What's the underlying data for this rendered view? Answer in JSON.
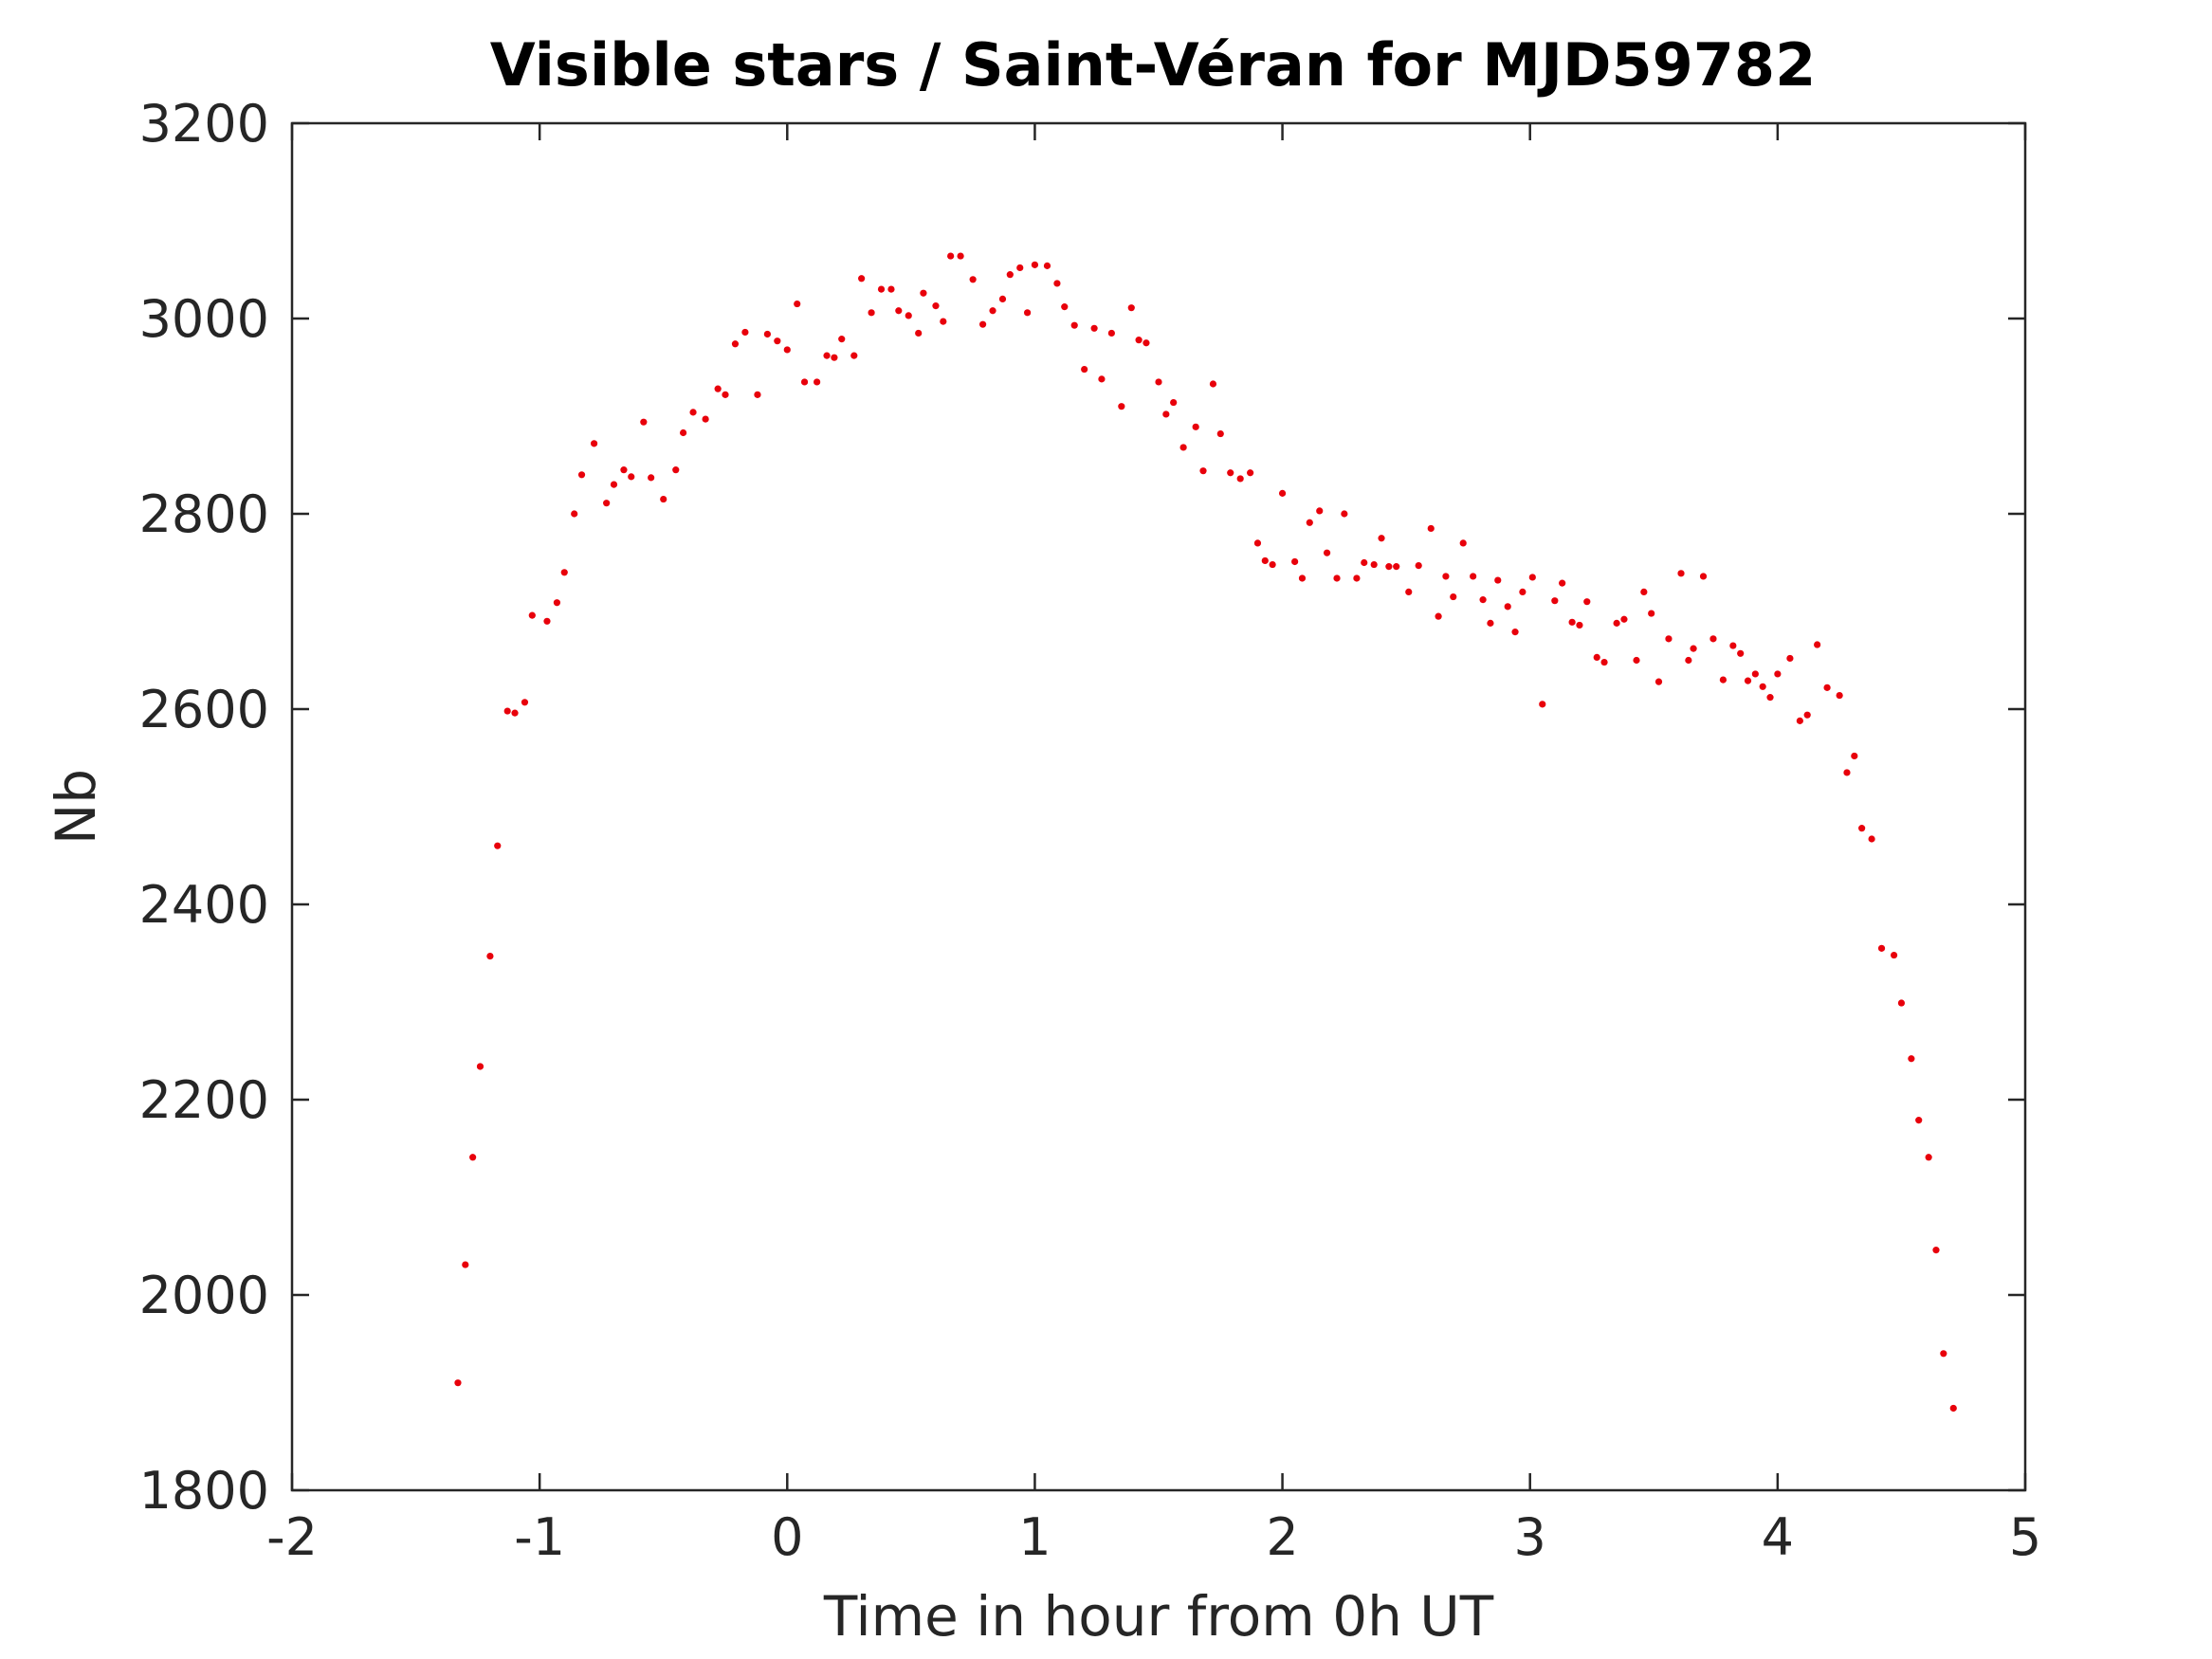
{
  "chart_data": {
    "type": "scatter",
    "title": "Visible stars / Saint-Véran for MJD59782",
    "xlabel": "Time in hour from 0h UT",
    "ylabel": "Nb",
    "xlim": [
      -2,
      5
    ],
    "ylim": [
      1800,
      3200
    ],
    "xticks": [
      -2,
      -1,
      0,
      1,
      2,
      3,
      4,
      5
    ],
    "yticks": [
      1800,
      2000,
      2200,
      2400,
      2600,
      2800,
      3000,
      3200
    ],
    "xtick_labels": [
      "-2",
      "-1",
      "0",
      "1",
      "2",
      "3",
      "4",
      "5"
    ],
    "ytick_labels": [
      "1800",
      "2000",
      "2200",
      "2400",
      "2600",
      "2800",
      "3000",
      "3200"
    ],
    "grid": false,
    "legend": "none",
    "marker_color": "#e8000b",
    "points": [
      [
        -1.33,
        1910
      ],
      [
        -1.3,
        2031
      ],
      [
        -1.27,
        2141
      ],
      [
        -1.24,
        2234
      ],
      [
        -1.2,
        2347
      ],
      [
        -1.17,
        2460
      ],
      [
        -1.13,
        2598
      ],
      [
        -1.1,
        2596
      ],
      [
        -1.06,
        2607
      ],
      [
        -1.03,
        2696
      ],
      [
        -0.97,
        2690
      ],
      [
        -0.93,
        2709
      ],
      [
        -0.9,
        2740
      ],
      [
        -0.86,
        2800
      ],
      [
        -0.83,
        2840
      ],
      [
        -0.78,
        2872
      ],
      [
        -0.73,
        2811
      ],
      [
        -0.7,
        2830
      ],
      [
        -0.66,
        2845
      ],
      [
        -0.63,
        2838
      ],
      [
        -0.58,
        2894
      ],
      [
        -0.55,
        2837
      ],
      [
        -0.5,
        2815
      ],
      [
        -0.45,
        2845
      ],
      [
        -0.42,
        2883
      ],
      [
        -0.38,
        2904
      ],
      [
        -0.33,
        2897
      ],
      [
        -0.28,
        2928
      ],
      [
        -0.25,
        2922
      ],
      [
        -0.21,
        2974
      ],
      [
        -0.17,
        2986
      ],
      [
        -0.12,
        2922
      ],
      [
        -0.08,
        2984
      ],
      [
        -0.04,
        2977
      ],
      [
        0.0,
        2968
      ],
      [
        0.04,
        3015
      ],
      [
        0.07,
        2935
      ],
      [
        0.12,
        2935
      ],
      [
        0.16,
        2962
      ],
      [
        0.19,
        2960
      ],
      [
        0.22,
        2979
      ],
      [
        0.27,
        2962
      ],
      [
        0.3,
        3041
      ],
      [
        0.34,
        3006
      ],
      [
        0.38,
        3030
      ],
      [
        0.42,
        3030
      ],
      [
        0.45,
        3008
      ],
      [
        0.49,
        3003
      ],
      [
        0.53,
        2985
      ],
      [
        0.55,
        3026
      ],
      [
        0.6,
        3013
      ],
      [
        0.63,
        2997
      ],
      [
        0.66,
        3064
      ],
      [
        0.7,
        3064
      ],
      [
        0.75,
        3040
      ],
      [
        0.79,
        2994
      ],
      [
        0.83,
        3008
      ],
      [
        0.87,
        3020
      ],
      [
        0.9,
        3045
      ],
      [
        0.94,
        3052
      ],
      [
        0.97,
        3006
      ],
      [
        1.0,
        3055
      ],
      [
        1.05,
        3054
      ],
      [
        1.09,
        3036
      ],
      [
        1.12,
        3012
      ],
      [
        1.16,
        2993
      ],
      [
        1.2,
        2948
      ],
      [
        1.24,
        2990
      ],
      [
        1.27,
        2938
      ],
      [
        1.31,
        2985
      ],
      [
        1.35,
        2910
      ],
      [
        1.39,
        3011
      ],
      [
        1.42,
        2978
      ],
      [
        1.45,
        2975
      ],
      [
        1.5,
        2935
      ],
      [
        1.53,
        2902
      ],
      [
        1.56,
        2914
      ],
      [
        1.6,
        2868
      ],
      [
        1.65,
        2889
      ],
      [
        1.68,
        2844
      ],
      [
        1.72,
        2933
      ],
      [
        1.75,
        2882
      ],
      [
        1.79,
        2842
      ],
      [
        1.83,
        2836
      ],
      [
        1.87,
        2842
      ],
      [
        1.9,
        2770
      ],
      [
        1.93,
        2752
      ],
      [
        1.96,
        2748
      ],
      [
        2.0,
        2821
      ],
      [
        2.05,
        2751
      ],
      [
        2.08,
        2734
      ],
      [
        2.11,
        2791
      ],
      [
        2.15,
        2803
      ],
      [
        2.18,
        2760
      ],
      [
        2.22,
        2734
      ],
      [
        2.25,
        2800
      ],
      [
        2.3,
        2734
      ],
      [
        2.33,
        2750
      ],
      [
        2.37,
        2748
      ],
      [
        2.4,
        2775
      ],
      [
        2.43,
        2746
      ],
      [
        2.46,
        2746
      ],
      [
        2.51,
        2720
      ],
      [
        2.55,
        2747
      ],
      [
        2.6,
        2785
      ],
      [
        2.63,
        2695
      ],
      [
        2.66,
        2736
      ],
      [
        2.69,
        2715
      ],
      [
        2.73,
        2770
      ],
      [
        2.77,
        2736
      ],
      [
        2.81,
        2712
      ],
      [
        2.84,
        2688
      ],
      [
        2.87,
        2732
      ],
      [
        2.91,
        2705
      ],
      [
        2.94,
        2679
      ],
      [
        2.97,
        2720
      ],
      [
        3.01,
        2735
      ],
      [
        3.05,
        2605
      ],
      [
        3.1,
        2711
      ],
      [
        3.13,
        2729
      ],
      [
        3.17,
        2689
      ],
      [
        3.2,
        2686
      ],
      [
        3.23,
        2710
      ],
      [
        3.27,
        2653
      ],
      [
        3.3,
        2648
      ],
      [
        3.35,
        2688
      ],
      [
        3.38,
        2692
      ],
      [
        3.43,
        2650
      ],
      [
        3.46,
        2720
      ],
      [
        3.49,
        2698
      ],
      [
        3.52,
        2628
      ],
      [
        3.56,
        2672
      ],
      [
        3.61,
        2739
      ],
      [
        3.64,
        2650
      ],
      [
        3.66,
        2662
      ],
      [
        3.7,
        2736
      ],
      [
        3.74,
        2672
      ],
      [
        3.78,
        2630
      ],
      [
        3.82,
        2665
      ],
      [
        3.85,
        2657
      ],
      [
        3.88,
        2629
      ],
      [
        3.91,
        2636
      ],
      [
        3.94,
        2623
      ],
      [
        3.97,
        2612
      ],
      [
        4.0,
        2636
      ],
      [
        4.05,
        2652
      ],
      [
        4.09,
        2588
      ],
      [
        4.12,
        2594
      ],
      [
        4.16,
        2666
      ],
      [
        4.2,
        2622
      ],
      [
        4.25,
        2614
      ],
      [
        4.28,
        2535
      ],
      [
        4.31,
        2552
      ],
      [
        4.34,
        2478
      ],
      [
        4.38,
        2467
      ],
      [
        4.42,
        2355
      ],
      [
        4.47,
        2348
      ],
      [
        4.5,
        2299
      ],
      [
        4.54,
        2242
      ],
      [
        4.57,
        2179
      ],
      [
        4.61,
        2141
      ],
      [
        4.64,
        2046
      ],
      [
        4.67,
        1940
      ],
      [
        4.71,
        1884
      ]
    ]
  }
}
